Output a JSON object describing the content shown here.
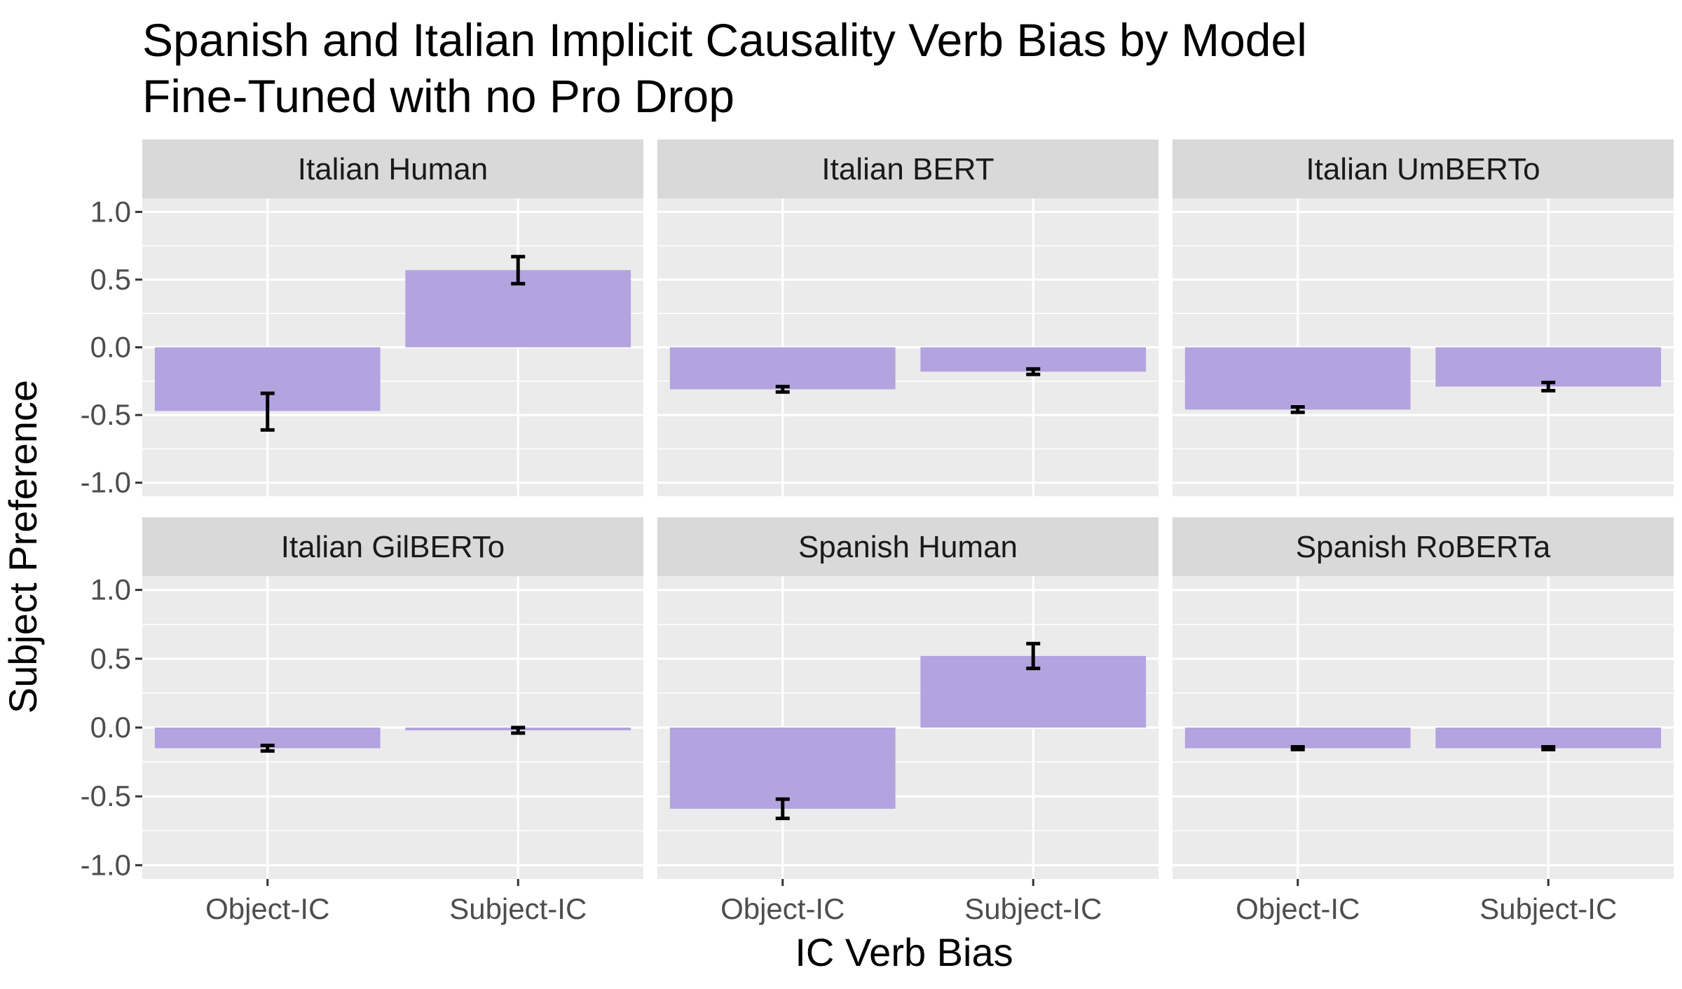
{
  "chart_data": {
    "type": "bar",
    "title_lines": [
      "Spanish and Italian Implicit Causality Verb Bias by Model",
      "Fine-Tuned with no Pro Drop"
    ],
    "xlabel": "IC Verb Bias",
    "ylabel": "Subject Preference",
    "categories": [
      "Object-IC",
      "Subject-IC"
    ],
    "ylim": [
      -1.1,
      1.1
    ],
    "yticks": [
      1.0,
      0.5,
      0.0,
      -0.5,
      -1.0
    ],
    "ytick_labels": [
      "1.0",
      "0.5",
      "0.0",
      "-0.5",
      "-1.0"
    ],
    "grid": true,
    "bar_color": "#b3a3df",
    "errorbar_color": "#000000",
    "panel_bg": "#ebebeb",
    "strip_bg": "#d9d9d9",
    "facets": [
      {
        "label": "Italian Human",
        "values": [
          -0.47,
          0.57
        ],
        "err_low": [
          -0.61,
          0.47
        ],
        "err_high": [
          -0.34,
          0.67
        ]
      },
      {
        "label": "Italian BERT",
        "values": [
          -0.31,
          -0.18
        ],
        "err_low": [
          -0.33,
          -0.2
        ],
        "err_high": [
          -0.29,
          -0.16
        ]
      },
      {
        "label": "Italian UmBERTo",
        "values": [
          -0.46,
          -0.29
        ],
        "err_low": [
          -0.48,
          -0.32
        ],
        "err_high": [
          -0.44,
          -0.26
        ]
      },
      {
        "label": "Italian GilBERTo",
        "values": [
          -0.15,
          -0.02
        ],
        "err_low": [
          -0.17,
          -0.04
        ],
        "err_high": [
          -0.13,
          0.0
        ]
      },
      {
        "label": "Spanish Human",
        "values": [
          -0.59,
          0.52
        ],
        "err_low": [
          -0.66,
          0.43
        ],
        "err_high": [
          -0.52,
          0.61
        ]
      },
      {
        "label": "Spanish RoBERTa",
        "values": [
          -0.15,
          -0.15
        ],
        "err_low": [
          -0.16,
          -0.16
        ],
        "err_high": [
          -0.14,
          -0.14
        ]
      }
    ]
  }
}
